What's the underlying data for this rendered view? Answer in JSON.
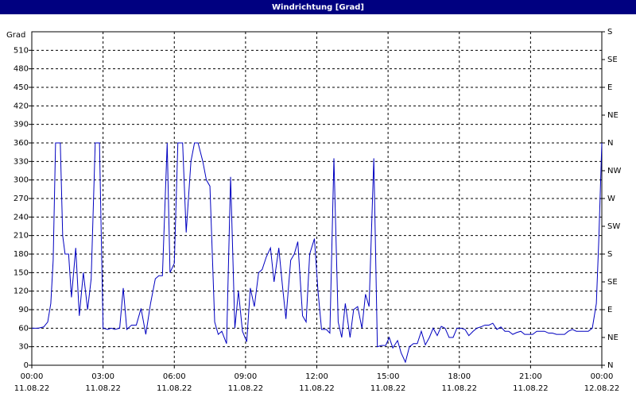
{
  "chart_data": {
    "type": "line",
    "title": "Windrichtung [Grad]",
    "y_label": "Grad",
    "color": "#0000c0",
    "grid": true,
    "xlim": [
      0,
      24
    ],
    "xticks": [
      {
        "value": 0,
        "label": "00:00"
      },
      {
        "value": 3,
        "label": "03:00"
      },
      {
        "value": 6,
        "label": "06:00"
      },
      {
        "value": 9,
        "label": "09:00"
      },
      {
        "value": 12,
        "label": "12:00"
      },
      {
        "value": 15,
        "label": "15:00"
      },
      {
        "value": 18,
        "label": "18:00"
      },
      {
        "value": 21,
        "label": "21:00"
      },
      {
        "value": 24,
        "label": "00:00"
      }
    ],
    "xtick_dates": [
      "11.08.22",
      "11.08.22",
      "11.08.22",
      "11.08.22",
      "11.08.22",
      "11.08.22",
      "11.08.22",
      "11.08.22",
      "12.08.22"
    ],
    "ylim": [
      0,
      540
    ],
    "yticks": [
      0,
      30,
      60,
      90,
      120,
      150,
      180,
      210,
      240,
      270,
      300,
      330,
      360,
      390,
      420,
      450,
      480,
      510
    ],
    "y2lim": [
      0,
      540
    ],
    "y2ticks": [
      {
        "value": 0,
        "label": "N"
      },
      {
        "value": 45,
        "label": "NE"
      },
      {
        "value": 90,
        "label": "E"
      },
      {
        "value": 135,
        "label": "SE"
      },
      {
        "value": 180,
        "label": "S"
      },
      {
        "value": 225,
        "label": "SW"
      },
      {
        "value": 270,
        "label": "W"
      },
      {
        "value": 315,
        "label": "NW"
      },
      {
        "value": 360,
        "label": "N"
      },
      {
        "value": 405,
        "label": "NE"
      },
      {
        "value": 450,
        "label": "E"
      },
      {
        "value": 495,
        "label": "SE"
      },
      {
        "value": 540,
        "label": "S"
      }
    ],
    "x": [
      0,
      0.27,
      0.5,
      0.67,
      0.8,
      0.9,
      1.0,
      1.2,
      1.3,
      1.4,
      1.55,
      1.67,
      1.85,
      2.0,
      2.17,
      2.35,
      2.5,
      2.67,
      2.85,
      3.0,
      3.2,
      3.35,
      3.5,
      3.7,
      3.85,
      4.0,
      4.2,
      4.4,
      4.6,
      4.8,
      5.0,
      5.2,
      5.35,
      5.5,
      5.7,
      5.82,
      6.0,
      6.15,
      6.35,
      6.5,
      6.7,
      6.85,
      7.0,
      7.2,
      7.35,
      7.5,
      7.7,
      7.85,
      8.0,
      8.2,
      8.37,
      8.55,
      8.7,
      8.87,
      9.05,
      9.2,
      9.37,
      9.55,
      9.7,
      9.87,
      10.05,
      10.2,
      10.4,
      10.55,
      10.7,
      10.9,
      11.05,
      11.2,
      11.4,
      11.55,
      11.7,
      11.9,
      12.05,
      12.2,
      12.4,
      12.55,
      12.72,
      12.9,
      13.05,
      13.2,
      13.4,
      13.55,
      13.72,
      13.9,
      14.05,
      14.2,
      14.4,
      14.55,
      14.72,
      14.9,
      15.05,
      15.2,
      15.4,
      15.55,
      15.73,
      15.9,
      16.07,
      16.23,
      16.4,
      16.57,
      16.74,
      16.9,
      17.07,
      17.24,
      17.4,
      17.57,
      17.74,
      17.9,
      18.07,
      18.24,
      18.4,
      18.58,
      18.74,
      18.9,
      19.08,
      19.25,
      19.41,
      19.58,
      19.75,
      19.92,
      20.08,
      20.25,
      20.42,
      20.59,
      20.75,
      20.92,
      21.09,
      21.26,
      21.42,
      21.59,
      21.76,
      21.92,
      22.09,
      22.26,
      22.43,
      22.59,
      22.76,
      22.93,
      23.1,
      23.26,
      23.43,
      23.6,
      23.77,
      23.87,
      24.0
    ],
    "values": [
      60,
      60,
      62,
      70,
      100,
      170,
      360,
      360,
      210,
      180,
      180,
      110,
      190,
      80,
      150,
      90,
      140,
      360,
      360,
      60,
      58,
      60,
      58,
      60,
      125,
      58,
      65,
      65,
      92,
      50,
      100,
      140,
      145,
      145,
      360,
      150,
      165,
      360,
      360,
      215,
      330,
      360,
      360,
      330,
      300,
      290,
      70,
      50,
      55,
      35,
      305,
      60,
      120,
      55,
      38,
      125,
      95,
      150,
      155,
      175,
      190,
      135,
      190,
      130,
      75,
      170,
      180,
      200,
      80,
      70,
      180,
      205,
      120,
      58,
      58,
      52,
      335,
      70,
      45,
      100,
      45,
      90,
      95,
      60,
      115,
      95,
      335,
      30,
      32,
      32,
      45,
      28,
      40,
      20,
      5,
      30,
      35,
      35,
      55,
      33,
      45,
      60,
      48,
      63,
      60,
      45,
      45,
      60,
      60,
      58,
      48,
      55,
      60,
      62,
      65,
      65,
      68,
      58,
      62,
      55,
      55,
      50,
      53,
      55,
      50,
      50,
      50,
      55,
      55,
      55,
      52,
      52,
      50,
      50,
      50,
      55,
      58,
      55,
      55,
      55,
      55,
      60,
      100,
      200,
      360
    ]
  }
}
